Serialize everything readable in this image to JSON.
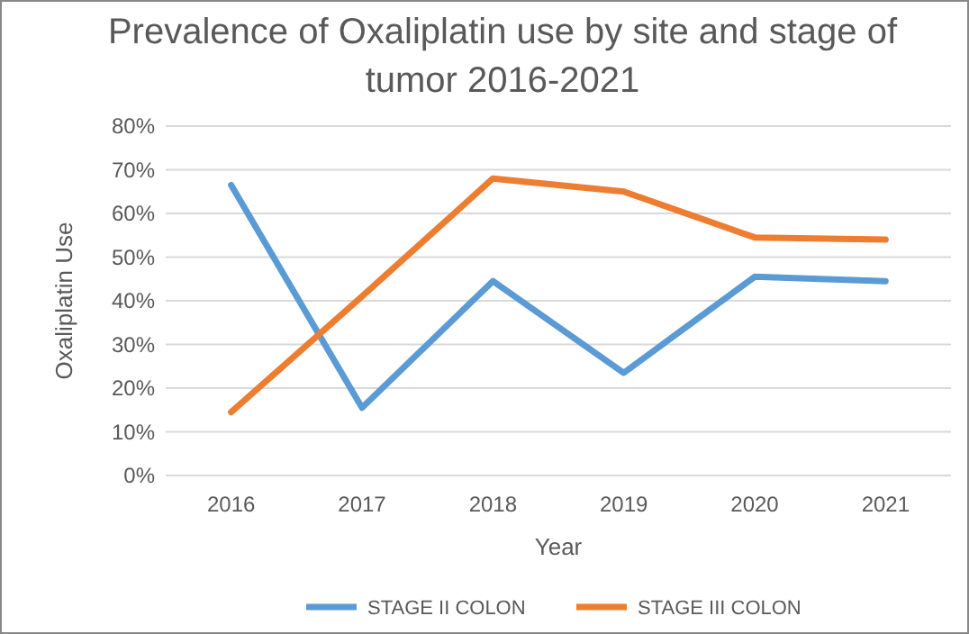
{
  "chart_data": {
    "type": "line",
    "title": "Prevalence of Oxaliplatin use by site and stage of tumor 2016-2021",
    "xlabel": "Year",
    "ylabel": "Oxaliplatin Use",
    "categories": [
      "2016",
      "2017",
      "2018",
      "2019",
      "2020",
      "2021"
    ],
    "series": [
      {
        "name": "STAGE II COLON",
        "color": "#5b9bd5",
        "values": [
          66.5,
          15.5,
          44.5,
          23.5,
          45.5,
          44.5
        ]
      },
      {
        "name": "STAGE III COLON",
        "color": "#ed7d31",
        "values": [
          14.5,
          41,
          68,
          65,
          54.5,
          54
        ]
      }
    ],
    "ylim": [
      0,
      80
    ],
    "yticks": [
      {
        "value": 0,
        "label": "0%"
      },
      {
        "value": 10,
        "label": "10%"
      },
      {
        "value": 20,
        "label": "20%"
      },
      {
        "value": 30,
        "label": "30%"
      },
      {
        "value": 40,
        "label": "40%"
      },
      {
        "value": 50,
        "label": "50%"
      },
      {
        "value": 60,
        "label": "60%"
      },
      {
        "value": 70,
        "label": "70%"
      },
      {
        "value": 80,
        "label": "80%"
      }
    ],
    "grid": "y",
    "legend": "bottom",
    "marker": "none",
    "line_style": "solid"
  }
}
